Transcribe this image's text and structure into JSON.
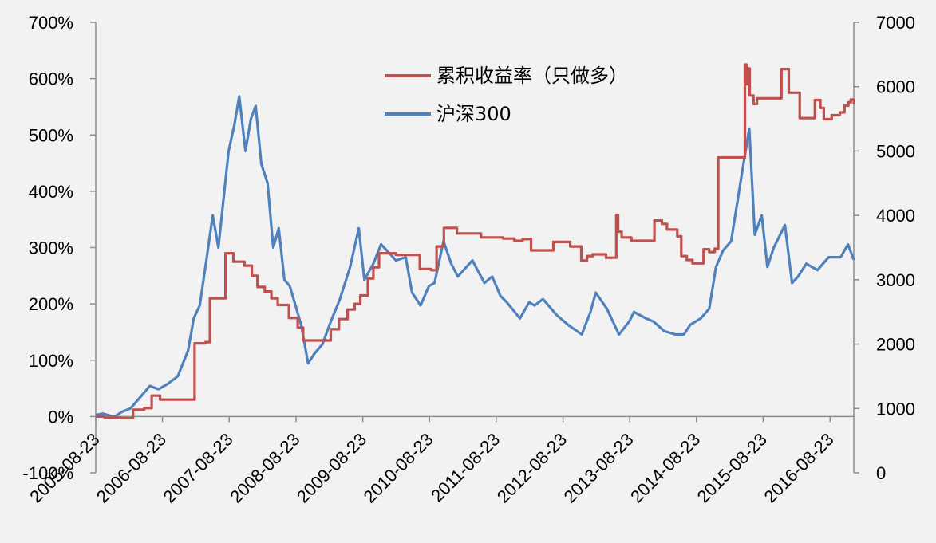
{
  "chart_data": {
    "type": "line",
    "title": "",
    "xlabel": "",
    "ylabel_left": "",
    "ylabel_right": "",
    "x_ticks": [
      "2005-08-23",
      "2006-08-23",
      "2007-08-23",
      "2008-08-23",
      "2009-08-23",
      "2010-08-23",
      "2011-08-23",
      "2012-08-23",
      "2013-08-23",
      "2014-08-23",
      "2015-08-23",
      "2016-08-23"
    ],
    "x_range": [
      "2005-08-23",
      "2016-12-31"
    ],
    "y_left": {
      "ticks": [
        "-100%",
        "0%",
        "100%",
        "200%",
        "300%",
        "400%",
        "500%",
        "600%",
        "700%"
      ],
      "range": [
        -100,
        700
      ]
    },
    "y_right": {
      "ticks": [
        "0",
        "1000",
        "2000",
        "3000",
        "4000",
        "5000",
        "6000",
        "7000"
      ],
      "range": [
        0,
        7000
      ]
    },
    "legend_position": "top-center",
    "grid": false,
    "series": [
      {
        "name": "累积收益率（只做多）",
        "axis": "left",
        "color": "#c0504d",
        "style": "step",
        "points": [
          [
            "2005-08-23",
            0
          ],
          [
            "2005-10-10",
            -2
          ],
          [
            "2006-01-10",
            -3
          ],
          [
            "2006-03-15",
            12
          ],
          [
            "2006-05-15",
            15
          ],
          [
            "2006-06-25",
            37
          ],
          [
            "2006-08-10",
            30
          ],
          [
            "2007-01-20",
            30
          ],
          [
            "2007-02-15",
            130
          ],
          [
            "2007-04-15",
            132
          ],
          [
            "2007-05-10",
            210
          ],
          [
            "2007-07-25",
            210
          ],
          [
            "2007-08-03",
            290
          ],
          [
            "2007-09-15",
            275
          ],
          [
            "2007-11-15",
            268
          ],
          [
            "2007-12-25",
            250
          ],
          [
            "2008-01-25",
            230
          ],
          [
            "2008-03-05",
            222
          ],
          [
            "2008-04-10",
            210
          ],
          [
            "2008-05-15",
            198
          ],
          [
            "2008-07-15",
            175
          ],
          [
            "2008-09-01",
            158
          ],
          [
            "2008-10-01",
            135
          ],
          [
            "2009-02-01",
            135
          ],
          [
            "2009-03-01",
            155
          ],
          [
            "2009-04-15",
            173
          ],
          [
            "2009-06-01",
            190
          ],
          [
            "2009-07-10",
            200
          ],
          [
            "2009-08-10",
            215
          ],
          [
            "2009-09-20",
            245
          ],
          [
            "2009-10-20",
            265
          ],
          [
            "2009-11-20",
            290
          ],
          [
            "2010-02-20",
            287
          ],
          [
            "2010-07-01",
            262
          ],
          [
            "2010-09-01",
            260
          ],
          [
            "2010-10-01",
            302
          ],
          [
            "2010-11-10",
            335
          ],
          [
            "2011-01-20",
            325
          ],
          [
            "2011-06-01",
            318
          ],
          [
            "2011-10-01",
            316
          ],
          [
            "2011-12-01",
            312
          ],
          [
            "2012-01-15",
            315
          ],
          [
            "2012-03-01",
            295
          ],
          [
            "2012-07-01",
            310
          ],
          [
            "2012-10-01",
            302
          ],
          [
            "2012-12-01",
            277
          ],
          [
            "2013-01-01",
            285
          ],
          [
            "2013-02-01",
            288
          ],
          [
            "2013-04-15",
            282
          ],
          [
            "2013-06-10",
            358
          ],
          [
            "2013-06-20",
            328
          ],
          [
            "2013-07-10",
            318
          ],
          [
            "2013-09-01",
            312
          ],
          [
            "2014-01-05",
            348
          ],
          [
            "2014-02-15",
            342
          ],
          [
            "2014-03-15",
            332
          ],
          [
            "2014-05-10",
            320
          ],
          [
            "2014-06-01",
            285
          ],
          [
            "2014-07-01",
            278
          ],
          [
            "2014-08-01",
            272
          ],
          [
            "2014-10-01",
            297
          ],
          [
            "2014-11-01",
            292
          ],
          [
            "2014-12-01",
            298
          ],
          [
            "2014-12-20",
            460
          ],
          [
            "2015-05-01",
            460
          ],
          [
            "2015-05-15",
            625
          ],
          [
            "2015-05-25",
            590
          ],
          [
            "2015-06-01",
            618
          ],
          [
            "2015-06-10",
            570
          ],
          [
            "2015-07-01",
            555
          ],
          [
            "2015-07-20",
            565
          ],
          [
            "2015-12-01",
            617
          ],
          [
            "2016-01-10",
            575
          ],
          [
            "2016-03-10",
            530
          ],
          [
            "2016-06-01",
            562
          ],
          [
            "2016-07-01",
            548
          ],
          [
            "2016-07-20",
            528
          ],
          [
            "2016-09-01",
            535
          ],
          [
            "2016-10-15",
            540
          ],
          [
            "2016-11-10",
            552
          ],
          [
            "2016-12-01",
            558
          ],
          [
            "2016-12-15",
            563
          ],
          [
            "2016-12-31",
            555
          ]
        ]
      },
      {
        "name": "沪深300",
        "axis": "right",
        "color": "#4f81bd",
        "style": "line",
        "points": [
          [
            "2005-08-23",
            900
          ],
          [
            "2005-10-01",
            920
          ],
          [
            "2005-12-01",
            870
          ],
          [
            "2006-01-15",
            950
          ],
          [
            "2006-03-01",
            1000
          ],
          [
            "2006-05-01",
            1200
          ],
          [
            "2006-06-15",
            1350
          ],
          [
            "2006-08-01",
            1300
          ],
          [
            "2006-09-20",
            1380
          ],
          [
            "2006-11-15",
            1500
          ],
          [
            "2007-01-10",
            1900
          ],
          [
            "2007-02-10",
            2400
          ],
          [
            "2007-03-15",
            2600
          ],
          [
            "2007-04-20",
            3300
          ],
          [
            "2007-05-25",
            4000
          ],
          [
            "2007-06-25",
            3500
          ],
          [
            "2007-07-25",
            4300
          ],
          [
            "2007-08-20",
            5000
          ],
          [
            "2007-09-20",
            5400
          ],
          [
            "2007-10-17",
            5850
          ],
          [
            "2007-11-20",
            5000
          ],
          [
            "2007-12-20",
            5500
          ],
          [
            "2008-01-15",
            5700
          ],
          [
            "2008-02-15",
            4800
          ],
          [
            "2008-03-20",
            4500
          ],
          [
            "2008-04-20",
            3500
          ],
          [
            "2008-05-20",
            3800
          ],
          [
            "2008-06-20",
            3000
          ],
          [
            "2008-07-20",
            2900
          ],
          [
            "2008-08-20",
            2600
          ],
          [
            "2008-09-20",
            2300
          ],
          [
            "2008-10-28",
            1700
          ],
          [
            "2008-12-01",
            1850
          ],
          [
            "2009-01-15",
            2000
          ],
          [
            "2009-03-01",
            2350
          ],
          [
            "2009-04-20",
            2700
          ],
          [
            "2009-06-15",
            3200
          ],
          [
            "2009-08-01",
            3800
          ],
          [
            "2009-09-01",
            3000
          ],
          [
            "2009-10-20",
            3250
          ],
          [
            "2009-12-01",
            3550
          ],
          [
            "2010-01-20",
            3400
          ],
          [
            "2010-02-20",
            3300
          ],
          [
            "2010-04-15",
            3350
          ],
          [
            "2010-05-20",
            2800
          ],
          [
            "2010-07-05",
            2600
          ],
          [
            "2010-08-20",
            2900
          ],
          [
            "2010-09-20",
            2950
          ],
          [
            "2010-11-08",
            3600
          ],
          [
            "2010-12-20",
            3250
          ],
          [
            "2011-01-25",
            3050
          ],
          [
            "2011-04-15",
            3300
          ],
          [
            "2011-06-20",
            2950
          ],
          [
            "2011-08-01",
            3050
          ],
          [
            "2011-09-15",
            2750
          ],
          [
            "2011-10-20",
            2650
          ],
          [
            "2011-12-31",
            2400
          ],
          [
            "2012-02-20",
            2650
          ],
          [
            "2012-03-20",
            2600
          ],
          [
            "2012-05-05",
            2700
          ],
          [
            "2012-07-20",
            2450
          ],
          [
            "2012-09-20",
            2300
          ],
          [
            "2012-12-03",
            2150
          ],
          [
            "2013-01-20",
            2500
          ],
          [
            "2013-02-18",
            2800
          ],
          [
            "2013-04-20",
            2550
          ],
          [
            "2013-06-25",
            2150
          ],
          [
            "2013-08-20",
            2350
          ],
          [
            "2013-09-15",
            2500
          ],
          [
            "2013-11-20",
            2400
          ],
          [
            "2013-12-31",
            2350
          ],
          [
            "2014-03-01",
            2200
          ],
          [
            "2014-05-01",
            2150
          ],
          [
            "2014-06-15",
            2150
          ],
          [
            "2014-07-20",
            2300
          ],
          [
            "2014-09-15",
            2400
          ],
          [
            "2014-11-01",
            2550
          ],
          [
            "2014-12-08",
            3200
          ],
          [
            "2015-01-15",
            3450
          ],
          [
            "2015-03-01",
            3600
          ],
          [
            "2015-04-20",
            4500
          ],
          [
            "2015-06-08",
            5350
          ],
          [
            "2015-07-08",
            3700
          ],
          [
            "2015-08-15",
            4000
          ],
          [
            "2015-09-15",
            3200
          ],
          [
            "2015-10-20",
            3500
          ],
          [
            "2015-12-20",
            3850
          ],
          [
            "2016-01-28",
            2950
          ],
          [
            "2016-03-01",
            3050
          ],
          [
            "2016-04-15",
            3250
          ],
          [
            "2016-06-15",
            3150
          ],
          [
            "2016-08-15",
            3350
          ],
          [
            "2016-10-20",
            3350
          ],
          [
            "2016-11-29",
            3550
          ],
          [
            "2016-12-31",
            3310
          ]
        ]
      }
    ]
  }
}
